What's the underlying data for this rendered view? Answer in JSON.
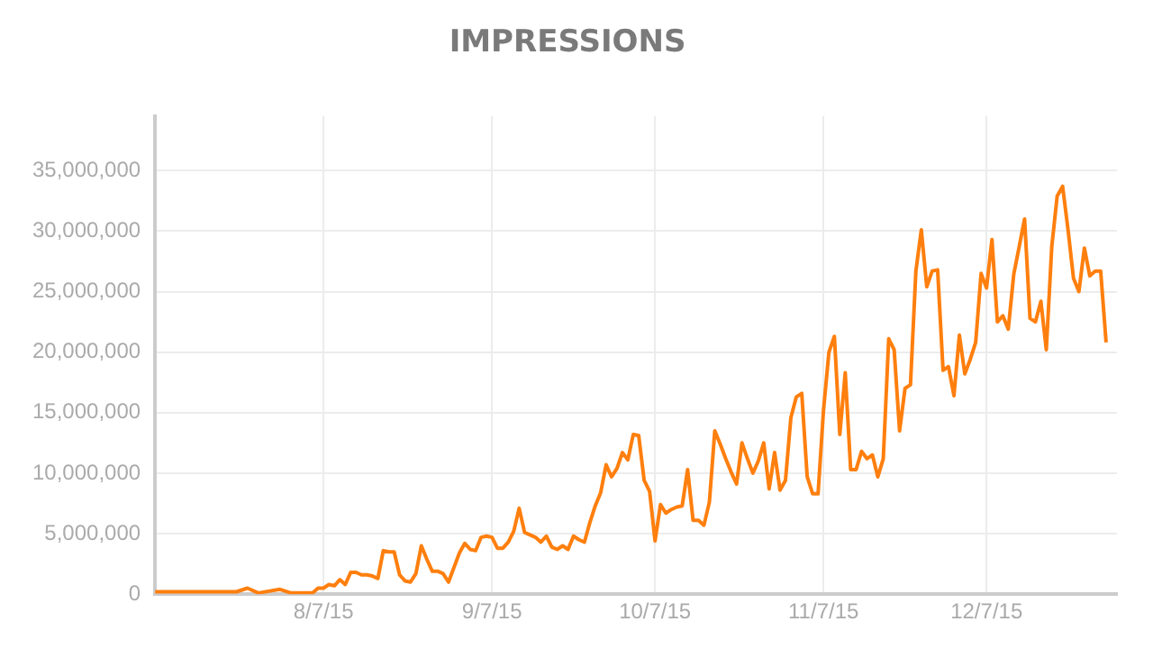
{
  "chart_data": {
    "type": "line",
    "title": "IMPRESSIONS",
    "x": [
      "2015-07-07",
      "2015-07-15",
      "2015-07-22",
      "2015-07-24",
      "2015-07-26",
      "2015-07-30",
      "2015-08-01",
      "2015-08-05",
      "2015-08-06",
      "2015-08-07",
      "2015-08-08",
      "2015-08-09",
      "2015-08-10",
      "2015-08-11",
      "2015-08-12",
      "2015-08-13",
      "2015-08-14",
      "2015-08-15",
      "2015-08-16",
      "2015-08-17",
      "2015-08-18",
      "2015-08-19",
      "2015-08-20",
      "2015-08-21",
      "2015-08-22",
      "2015-08-23",
      "2015-08-24",
      "2015-08-25",
      "2015-08-26",
      "2015-08-27",
      "2015-08-28",
      "2015-08-29",
      "2015-08-30",
      "2015-08-31",
      "2015-09-01",
      "2015-09-02",
      "2015-09-03",
      "2015-09-04",
      "2015-09-05",
      "2015-09-06",
      "2015-09-07",
      "2015-09-08",
      "2015-09-09",
      "2015-09-10",
      "2015-09-11",
      "2015-09-12",
      "2015-09-13",
      "2015-09-14",
      "2015-09-15",
      "2015-09-16",
      "2015-09-17",
      "2015-09-18",
      "2015-09-19",
      "2015-09-20",
      "2015-09-21",
      "2015-09-22",
      "2015-09-23",
      "2015-09-24",
      "2015-09-25",
      "2015-09-26",
      "2015-09-27",
      "2015-09-28",
      "2015-09-29",
      "2015-09-30",
      "2015-10-01",
      "2015-10-02",
      "2015-10-03",
      "2015-10-04",
      "2015-10-05",
      "2015-10-06",
      "2015-10-07",
      "2015-10-08",
      "2015-10-09",
      "2015-10-10",
      "2015-10-11",
      "2015-10-12",
      "2015-10-13",
      "2015-10-14",
      "2015-10-15",
      "2015-10-16",
      "2015-10-17",
      "2015-10-18",
      "2015-10-19",
      "2015-10-20",
      "2015-10-21",
      "2015-10-22",
      "2015-10-23",
      "2015-10-24",
      "2015-10-25",
      "2015-10-26",
      "2015-10-27",
      "2015-10-28",
      "2015-10-29",
      "2015-10-30",
      "2015-10-31",
      "2015-11-01",
      "2015-11-02",
      "2015-11-03",
      "2015-11-04",
      "2015-11-05",
      "2015-11-06",
      "2015-11-07",
      "2015-11-08",
      "2015-11-09",
      "2015-11-10",
      "2015-11-11",
      "2015-11-12",
      "2015-11-13",
      "2015-11-14",
      "2015-11-15",
      "2015-11-16",
      "2015-11-17",
      "2015-11-18",
      "2015-11-19",
      "2015-11-20",
      "2015-11-21",
      "2015-11-22",
      "2015-11-23",
      "2015-11-24",
      "2015-11-25",
      "2015-11-26",
      "2015-11-27",
      "2015-11-28",
      "2015-11-29",
      "2015-11-30",
      "2015-12-01",
      "2015-12-02",
      "2015-12-03",
      "2015-12-04",
      "2015-12-05",
      "2015-12-06",
      "2015-12-07",
      "2015-12-08",
      "2015-12-09",
      "2015-12-10",
      "2015-12-11",
      "2015-12-12",
      "2015-12-13",
      "2015-12-14",
      "2015-12-15",
      "2015-12-16",
      "2015-12-17",
      "2015-12-18",
      "2015-12-19",
      "2015-12-20",
      "2015-12-21",
      "2015-12-22",
      "2015-12-23",
      "2015-12-24",
      "2015-12-25",
      "2015-12-26",
      "2015-12-27",
      "2015-12-28",
      "2015-12-29"
    ],
    "series": [
      {
        "color": "#ff7f0e",
        "values": [
          200000,
          200000,
          200000,
          500000,
          100000,
          400000,
          100000,
          100000,
          500000,
          500000,
          800000,
          700000,
          1200000,
          800000,
          1800000,
          1800000,
          1600000,
          1600000,
          1500000,
          1300000,
          3600000,
          3500000,
          3500000,
          1600000,
          1100000,
          1000000,
          1700000,
          4000000,
          2900000,
          1900000,
          1900000,
          1700000,
          1000000,
          2200000,
          3400000,
          4200000,
          3700000,
          3600000,
          4700000,
          4800000,
          4700000,
          3800000,
          3800000,
          4300000,
          5200000,
          7100000,
          5100000,
          4900000,
          4700000,
          4300000,
          4800000,
          3900000,
          3700000,
          4000000,
          3700000,
          4800000,
          4500000,
          4300000,
          5900000,
          7300000,
          8400000,
          10700000,
          9700000,
          10400000,
          11700000,
          11100000,
          13200000,
          13100000,
          9400000,
          8500000,
          4400000,
          7400000,
          6700000,
          7000000,
          7200000,
          7300000,
          10300000,
          6100000,
          6100000,
          5700000,
          7600000,
          13500000,
          12400000,
          11200000,
          10100000,
          9100000,
          12500000,
          11200000,
          10000000,
          11000000,
          12500000,
          8700000,
          11700000,
          8600000,
          9400000,
          14600000,
          16300000,
          16600000,
          9700000,
          8300000,
          8300000,
          15200000,
          20000000,
          21300000,
          13200000,
          18300000,
          10300000,
          10300000,
          11800000,
          11200000,
          11500000,
          9700000,
          11200000,
          21100000,
          20200000,
          13500000,
          17000000,
          17300000,
          26700000,
          30100000,
          25400000,
          26700000,
          26800000,
          18500000,
          18800000,
          16400000,
          21400000,
          18200000,
          19400000,
          20800000,
          26500000,
          25300000,
          29300000,
          22500000,
          23000000,
          21900000,
          26400000,
          28700000,
          31000000,
          22800000,
          22500000,
          24200000,
          20200000,
          28700000,
          32900000,
          33700000,
          30100000,
          26100000,
          25000000,
          28600000,
          26300000,
          26700000,
          26700000,
          20800000
        ]
      }
    ],
    "xlim": [
      "2015-07-07",
      "2015-12-31"
    ],
    "xticks": [
      {
        "value": "2015-08-07",
        "label": "8/7/15"
      },
      {
        "value": "2015-09-07",
        "label": "9/7/15"
      },
      {
        "value": "2015-10-07",
        "label": "10/7/15"
      },
      {
        "value": "2015-11-07",
        "label": "11/7/15"
      },
      {
        "value": "2015-12-07",
        "label": "12/7/15"
      }
    ],
    "ylim": [
      0,
      39500000
    ],
    "yticks": [
      {
        "value": 0,
        "label": "0"
      },
      {
        "value": 5000000,
        "label": "5,000,000"
      },
      {
        "value": 10000000,
        "label": "10,000,000"
      },
      {
        "value": 15000000,
        "label": "15,000,000"
      },
      {
        "value": 20000000,
        "label": "20,000,000"
      },
      {
        "value": 25000000,
        "label": "25,000,000"
      },
      {
        "value": 30000000,
        "label": "30,000,000"
      },
      {
        "value": 35000000,
        "label": "35,000,000"
      }
    ],
    "grid": true,
    "legend": false,
    "marker": "none",
    "line_style": "solid"
  }
}
